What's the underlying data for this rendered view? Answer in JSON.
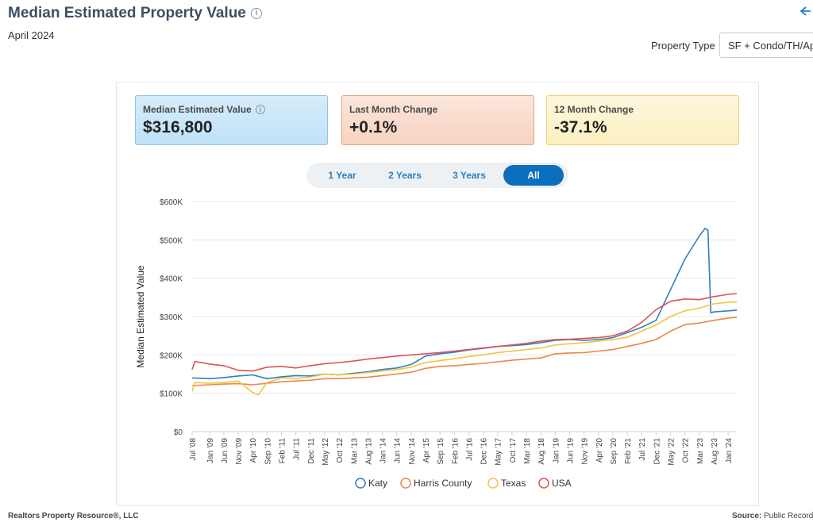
{
  "header": {
    "title": "Median Estimated Property Value",
    "subtitle": "April 2024",
    "property_type_label": "Property Type",
    "property_type_value": "SF + Condo/TH/Apt"
  },
  "cards": [
    {
      "label": "Median Estimated Value",
      "value": "$316,800"
    },
    {
      "label": "Last Month Change",
      "value": "+0.1%"
    },
    {
      "label": "12 Month Change",
      "value": "-37.1%"
    }
  ],
  "range_buttons": [
    {
      "label": "1 Year",
      "active": false
    },
    {
      "label": "2 Years",
      "active": false
    },
    {
      "label": "3 Years",
      "active": false
    },
    {
      "label": "All",
      "active": true
    }
  ],
  "footer": {
    "left": "Realtors Property Resource®, LLC",
    "source_label": "Source:",
    "source_value": "Public Records"
  },
  "chart_data": {
    "type": "line",
    "ylabel": "Median Estimated Value",
    "ylim": [
      0,
      600000
    ],
    "y_ticks": [
      "$0",
      "$100K",
      "$200K",
      "$300K",
      "$400K",
      "$500K",
      "$600K"
    ],
    "x_ticks": [
      "Jul '08",
      "Jan '09",
      "Jun '09",
      "Nov '09",
      "Apr '10",
      "Sep '10",
      "Feb '11",
      "Jul '11",
      "Dec '11",
      "May '12",
      "Oct '12",
      "Mar '13",
      "Aug '13",
      "Jan '14",
      "Jun '14",
      "Nov '14",
      "Apr '15",
      "Sep '15",
      "Feb '16",
      "Jul '16",
      "Dec '16",
      "May '17",
      "Oct '17",
      "Mar '18",
      "Aug '18",
      "Jan '19",
      "Jun '19",
      "Nov '19",
      "Apr '20",
      "Sep '20",
      "Feb '21",
      "Jul '21",
      "Dec '21",
      "May '22",
      "Oct '22",
      "Mar '23",
      "Aug '23",
      "Jan '24"
    ],
    "x_range": [
      "2008-07",
      "2024-04"
    ],
    "legend_position": "bottom",
    "grid": true,
    "series": [
      {
        "name": "Katy",
        "color": "#2f7fc1",
        "points": [
          [
            "2008-07",
            140000
          ],
          [
            "2009-01",
            138000
          ],
          [
            "2009-06",
            141000
          ],
          [
            "2009-11",
            145000
          ],
          [
            "2010-04",
            148000
          ],
          [
            "2010-09",
            138000
          ],
          [
            "2011-02",
            143000
          ],
          [
            "2011-07",
            146000
          ],
          [
            "2011-12",
            145000
          ],
          [
            "2012-05",
            150000
          ],
          [
            "2012-10",
            148000
          ],
          [
            "2013-03",
            152000
          ],
          [
            "2013-08",
            156000
          ],
          [
            "2014-01",
            162000
          ],
          [
            "2014-06",
            166000
          ],
          [
            "2014-11",
            175000
          ],
          [
            "2015-04",
            197000
          ],
          [
            "2015-09",
            203000
          ],
          [
            "2016-02",
            207000
          ],
          [
            "2016-07",
            213000
          ],
          [
            "2016-12",
            217000
          ],
          [
            "2017-05",
            222000
          ],
          [
            "2017-10",
            224000
          ],
          [
            "2018-03",
            227000
          ],
          [
            "2018-08",
            232000
          ],
          [
            "2019-01",
            238000
          ],
          [
            "2019-06",
            240000
          ],
          [
            "2019-11",
            238000
          ],
          [
            "2020-04",
            240000
          ],
          [
            "2020-09",
            245000
          ],
          [
            "2021-02",
            258000
          ],
          [
            "2021-07",
            272000
          ],
          [
            "2021-12",
            290000
          ],
          [
            "2022-05",
            370000
          ],
          [
            "2022-10",
            450000
          ],
          [
            "2023-03",
            510000
          ],
          [
            "2023-05",
            530000
          ],
          [
            "2023-06",
            525000
          ],
          [
            "2023-07",
            310000
          ],
          [
            "2023-08",
            312000
          ],
          [
            "2024-01",
            315000
          ],
          [
            "2024-04",
            316800
          ]
        ]
      },
      {
        "name": "Harris County",
        "color": "#e8874e",
        "points": [
          [
            "2008-07",
            120000
          ],
          [
            "2009-01",
            122000
          ],
          [
            "2009-06",
            124000
          ],
          [
            "2009-11",
            125000
          ],
          [
            "2010-04",
            122000
          ],
          [
            "2010-09",
            126000
          ],
          [
            "2011-02",
            130000
          ],
          [
            "2011-07",
            132000
          ],
          [
            "2011-12",
            134000
          ],
          [
            "2012-05",
            138000
          ],
          [
            "2012-10",
            138000
          ],
          [
            "2013-03",
            140000
          ],
          [
            "2013-08",
            142000
          ],
          [
            "2014-01",
            146000
          ],
          [
            "2014-06",
            150000
          ],
          [
            "2014-11",
            155000
          ],
          [
            "2015-04",
            165000
          ],
          [
            "2015-09",
            170000
          ],
          [
            "2016-02",
            172000
          ],
          [
            "2016-07",
            175000
          ],
          [
            "2016-12",
            178000
          ],
          [
            "2017-05",
            182000
          ],
          [
            "2017-10",
            186000
          ],
          [
            "2018-03",
            189000
          ],
          [
            "2018-08",
            192000
          ],
          [
            "2019-01",
            203000
          ],
          [
            "2019-06",
            205000
          ],
          [
            "2019-11",
            206000
          ],
          [
            "2020-04",
            210000
          ],
          [
            "2020-09",
            214000
          ],
          [
            "2021-02",
            222000
          ],
          [
            "2021-07",
            230000
          ],
          [
            "2021-12",
            240000
          ],
          [
            "2022-05",
            262000
          ],
          [
            "2022-10",
            279000
          ],
          [
            "2023-03",
            283000
          ],
          [
            "2023-08",
            290000
          ],
          [
            "2024-01",
            296000
          ],
          [
            "2024-04",
            298000
          ]
        ]
      },
      {
        "name": "Texas",
        "color": "#f2c43c",
        "points": [
          [
            "2008-07",
            105000
          ],
          [
            "2008-08",
            128000
          ],
          [
            "2009-01",
            126000
          ],
          [
            "2009-06",
            128000
          ],
          [
            "2009-11",
            132000
          ],
          [
            "2010-04",
            102000
          ],
          [
            "2010-06",
            96000
          ],
          [
            "2010-09",
            128000
          ],
          [
            "2011-02",
            140000
          ],
          [
            "2011-07",
            139000
          ],
          [
            "2011-12",
            142000
          ],
          [
            "2012-05",
            150000
          ],
          [
            "2012-10",
            148000
          ],
          [
            "2013-03",
            150000
          ],
          [
            "2013-08",
            154000
          ],
          [
            "2014-01",
            158000
          ],
          [
            "2014-06",
            162000
          ],
          [
            "2014-11",
            168000
          ],
          [
            "2015-04",
            180000
          ],
          [
            "2015-09",
            185000
          ],
          [
            "2016-02",
            190000
          ],
          [
            "2016-07",
            196000
          ],
          [
            "2016-12",
            200000
          ],
          [
            "2017-05",
            206000
          ],
          [
            "2017-10",
            210000
          ],
          [
            "2018-03",
            214000
          ],
          [
            "2018-08",
            218000
          ],
          [
            "2019-01",
            226000
          ],
          [
            "2019-06",
            229000
          ],
          [
            "2019-11",
            232000
          ],
          [
            "2020-04",
            236000
          ],
          [
            "2020-09",
            240000
          ],
          [
            "2021-02",
            246000
          ],
          [
            "2021-07",
            262000
          ],
          [
            "2021-12",
            278000
          ],
          [
            "2022-05",
            300000
          ],
          [
            "2022-10",
            315000
          ],
          [
            "2023-03",
            322000
          ],
          [
            "2023-08",
            333000
          ],
          [
            "2024-01",
            337000
          ],
          [
            "2024-04",
            338000
          ]
        ]
      },
      {
        "name": "USA",
        "color": "#e05252",
        "points": [
          [
            "2008-07",
            162000
          ],
          [
            "2008-08",
            183000
          ],
          [
            "2009-01",
            176000
          ],
          [
            "2009-06",
            172000
          ],
          [
            "2009-11",
            160000
          ],
          [
            "2010-04",
            158000
          ],
          [
            "2010-09",
            168000
          ],
          [
            "2011-02",
            170000
          ],
          [
            "2011-07",
            166000
          ],
          [
            "2011-12",
            172000
          ],
          [
            "2012-05",
            177000
          ],
          [
            "2012-10",
            180000
          ],
          [
            "2013-03",
            184000
          ],
          [
            "2013-08",
            189000
          ],
          [
            "2014-01",
            193000
          ],
          [
            "2014-06",
            197000
          ],
          [
            "2014-11",
            200000
          ],
          [
            "2015-04",
            203000
          ],
          [
            "2015-09",
            206000
          ],
          [
            "2016-02",
            210000
          ],
          [
            "2016-07",
            214000
          ],
          [
            "2016-12",
            218000
          ],
          [
            "2017-05",
            222000
          ],
          [
            "2017-10",
            226000
          ],
          [
            "2018-03",
            230000
          ],
          [
            "2018-08",
            236000
          ],
          [
            "2019-01",
            240000
          ],
          [
            "2019-06",
            241000
          ],
          [
            "2019-11",
            243000
          ],
          [
            "2020-04",
            245000
          ],
          [
            "2020-09",
            250000
          ],
          [
            "2021-02",
            262000
          ],
          [
            "2021-07",
            285000
          ],
          [
            "2021-12",
            318000
          ],
          [
            "2022-05",
            340000
          ],
          [
            "2022-10",
            346000
          ],
          [
            "2023-03",
            344000
          ],
          [
            "2023-08",
            352000
          ],
          [
            "2024-01",
            358000
          ],
          [
            "2024-04",
            360000
          ]
        ]
      }
    ]
  }
}
